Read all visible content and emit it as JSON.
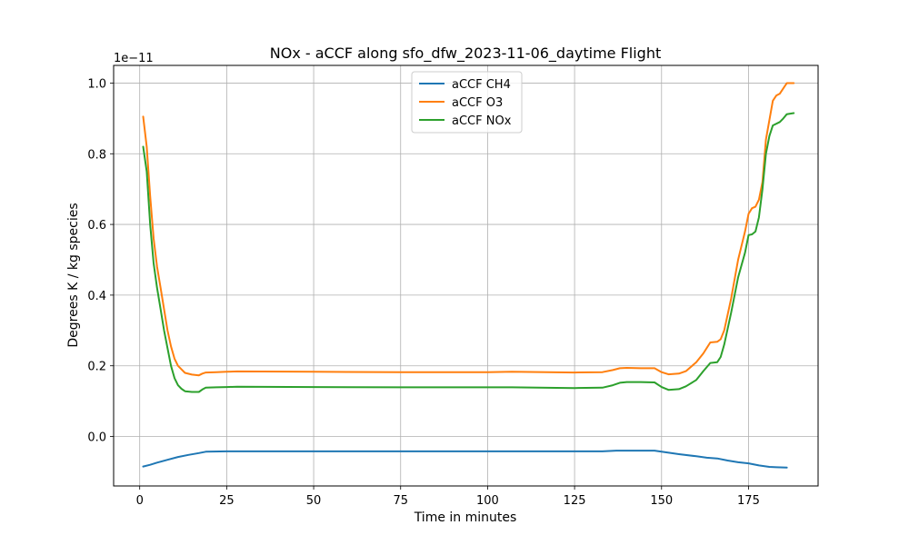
{
  "chart_data": {
    "type": "line",
    "title": "NOx - aCCF along sfo_dfw_2023-11-06_daytime Flight",
    "xlabel": "Time in minutes",
    "ylabel": "Degrees K / kg species",
    "offset_label": "1e−11",
    "xlim": [
      -7.5,
      195
    ],
    "ylim": [
      -0.14,
      1.05
    ],
    "xticks": [
      0,
      25,
      50,
      75,
      100,
      125,
      150,
      175
    ],
    "yticks": [
      0.0,
      0.2,
      0.4,
      0.6,
      0.8,
      1.0
    ],
    "ytick_labels": [
      "0.0",
      "0.2",
      "0.4",
      "0.6",
      "0.8",
      "1.0"
    ],
    "grid": true,
    "legend_placement": "upper center",
    "series": [
      {
        "name": "aCCF CH4",
        "color": "#1f77b4",
        "points": [
          [
            1,
            -0.085
          ],
          [
            3,
            -0.08
          ],
          [
            5,
            -0.074
          ],
          [
            8,
            -0.066
          ],
          [
            11,
            -0.058
          ],
          [
            14,
            -0.052
          ],
          [
            17,
            -0.047
          ],
          [
            19,
            -0.043
          ],
          [
            25,
            -0.042
          ],
          [
            50,
            -0.042
          ],
          [
            75,
            -0.042
          ],
          [
            100,
            -0.042
          ],
          [
            125,
            -0.042
          ],
          [
            133,
            -0.042
          ],
          [
            137,
            -0.04
          ],
          [
            148,
            -0.04
          ],
          [
            150,
            -0.043
          ],
          [
            155,
            -0.05
          ],
          [
            160,
            -0.056
          ],
          [
            163,
            -0.06
          ],
          [
            166,
            -0.062
          ],
          [
            169,
            -0.068
          ],
          [
            172,
            -0.073
          ],
          [
            175,
            -0.076
          ],
          [
            178,
            -0.082
          ],
          [
            181,
            -0.086
          ],
          [
            183,
            -0.087
          ],
          [
            186,
            -0.088
          ]
        ]
      },
      {
        "name": "aCCF O3",
        "color": "#ff7f0e",
        "points": [
          [
            1,
            0.905
          ],
          [
            2,
            0.82
          ],
          [
            3,
            0.68
          ],
          [
            4,
            0.56
          ],
          [
            5,
            0.48
          ],
          [
            6,
            0.42
          ],
          [
            7,
            0.36
          ],
          [
            8,
            0.3
          ],
          [
            9,
            0.255
          ],
          [
            10,
            0.22
          ],
          [
            11,
            0.2
          ],
          [
            12,
            0.19
          ],
          [
            13,
            0.18
          ],
          [
            15,
            0.175
          ],
          [
            17,
            0.173
          ],
          [
            18,
            0.178
          ],
          [
            19,
            0.181
          ],
          [
            22,
            0.182
          ],
          [
            25,
            0.183
          ],
          [
            28,
            0.184
          ],
          [
            50,
            0.183
          ],
          [
            75,
            0.182
          ],
          [
            100,
            0.182
          ],
          [
            107,
            0.183
          ],
          [
            125,
            0.181
          ],
          [
            133,
            0.182
          ],
          [
            136,
            0.188
          ],
          [
            138,
            0.193
          ],
          [
            140,
            0.194
          ],
          [
            144,
            0.193
          ],
          [
            148,
            0.193
          ],
          [
            150,
            0.182
          ],
          [
            152,
            0.176
          ],
          [
            155,
            0.178
          ],
          [
            157,
            0.185
          ],
          [
            160,
            0.21
          ],
          [
            162,
            0.235
          ],
          [
            164,
            0.266
          ],
          [
            166,
            0.268
          ],
          [
            167,
            0.275
          ],
          [
            168,
            0.3
          ],
          [
            170,
            0.39
          ],
          [
            172,
            0.5
          ],
          [
            174,
            0.58
          ],
          [
            175,
            0.63
          ],
          [
            176,
            0.646
          ],
          [
            177,
            0.65
          ],
          [
            178,
            0.67
          ],
          [
            179,
            0.72
          ],
          [
            180,
            0.84
          ],
          [
            182,
            0.95
          ],
          [
            183,
            0.965
          ],
          [
            184,
            0.97
          ],
          [
            185,
            0.985
          ],
          [
            186,
            1.0
          ],
          [
            188,
            1.0
          ]
        ]
      },
      {
        "name": "aCCF NOx",
        "color": "#2ca02c",
        "points": [
          [
            1,
            0.82
          ],
          [
            2,
            0.75
          ],
          [
            3,
            0.6
          ],
          [
            4,
            0.49
          ],
          [
            5,
            0.42
          ],
          [
            6,
            0.36
          ],
          [
            7,
            0.3
          ],
          [
            8,
            0.25
          ],
          [
            9,
            0.2
          ],
          [
            10,
            0.165
          ],
          [
            11,
            0.145
          ],
          [
            12,
            0.135
          ],
          [
            13,
            0.128
          ],
          [
            15,
            0.126
          ],
          [
            17,
            0.126
          ],
          [
            18,
            0.133
          ],
          [
            19,
            0.138
          ],
          [
            22,
            0.139
          ],
          [
            25,
            0.14
          ],
          [
            28,
            0.141
          ],
          [
            50,
            0.14
          ],
          [
            75,
            0.139
          ],
          [
            100,
            0.139
          ],
          [
            107,
            0.139
          ],
          [
            125,
            0.137
          ],
          [
            133,
            0.138
          ],
          [
            136,
            0.145
          ],
          [
            138,
            0.152
          ],
          [
            140,
            0.154
          ],
          [
            144,
            0.154
          ],
          [
            148,
            0.153
          ],
          [
            150,
            0.14
          ],
          [
            152,
            0.132
          ],
          [
            155,
            0.134
          ],
          [
            157,
            0.142
          ],
          [
            160,
            0.16
          ],
          [
            162,
            0.185
          ],
          [
            164,
            0.208
          ],
          [
            166,
            0.21
          ],
          [
            167,
            0.225
          ],
          [
            168,
            0.26
          ],
          [
            170,
            0.35
          ],
          [
            172,
            0.45
          ],
          [
            174,
            0.52
          ],
          [
            175,
            0.57
          ],
          [
            176,
            0.572
          ],
          [
            177,
            0.58
          ],
          [
            178,
            0.62
          ],
          [
            179,
            0.7
          ],
          [
            180,
            0.8
          ],
          [
            181,
            0.85
          ],
          [
            182,
            0.88
          ],
          [
            184,
            0.89
          ],
          [
            185,
            0.9
          ],
          [
            186,
            0.912
          ],
          [
            188,
            0.915
          ]
        ]
      }
    ]
  }
}
